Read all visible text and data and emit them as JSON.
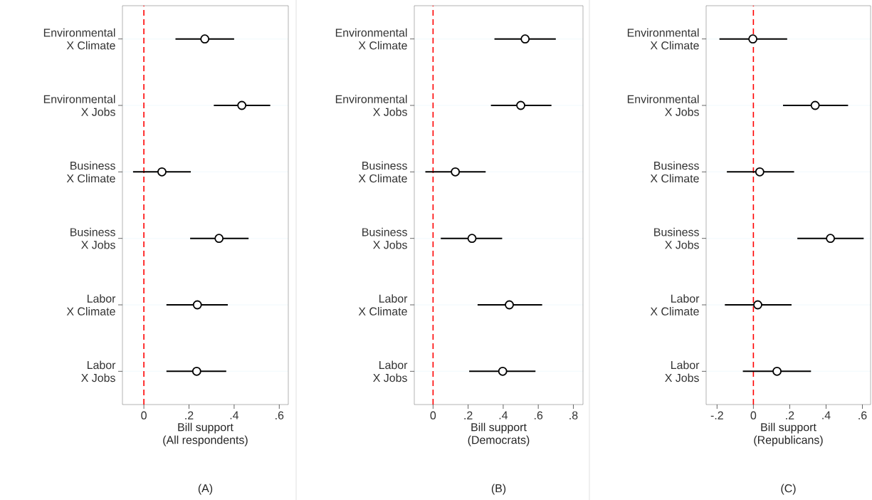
{
  "chart_data": [
    {
      "type": "scatter",
      "orientation": "horizontal",
      "title": "(A)",
      "xlabel": "Bill support\n(All respondents)",
      "categories": [
        "Environmental\nX Climate",
        "Environmental\nX Jobs",
        "Business\nX Climate",
        "Business\nX Jobs",
        "Labor\nX Climate",
        "Labor\nX Jobs"
      ],
      "values": [
        0.27,
        0.434,
        0.08,
        0.333,
        0.237,
        0.234
      ],
      "errors": [
        [
          0.14,
          0.4
        ],
        [
          0.31,
          0.56
        ],
        [
          -0.048,
          0.208
        ],
        [
          0.205,
          0.464
        ],
        [
          0.1,
          0.372
        ],
        [
          0.1,
          0.365
        ]
      ],
      "color": "#000000",
      "marker": "circle",
      "grid": "y",
      "xlim": [
        -0.095,
        0.64
      ],
      "xticks": [
        0,
        {
          "value": 0.2,
          "label": ".2"
        },
        {
          "value": 0.4,
          "label": ".4"
        },
        {
          "value": 0.6,
          "label": ".6"
        }
      ],
      "ref_lines": [
        {
          "axis": "x",
          "value": 0,
          "color": "#ff0000",
          "line_style": "dashed"
        }
      ]
    },
    {
      "type": "scatter",
      "orientation": "horizontal",
      "title": "(B)",
      "xlabel": "Bill support\n(Democrats)",
      "categories": [
        "Environmental\nX Climate",
        "Environmental\nX Jobs",
        "Business\nX Climate",
        "Business\nX Jobs",
        "Labor\nX Climate",
        "Labor\nX Jobs"
      ],
      "values": [
        0.525,
        0.5,
        0.127,
        0.222,
        0.435,
        0.397
      ],
      "errors": [
        [
          0.35,
          0.7
        ],
        [
          0.33,
          0.675
        ],
        [
          -0.044,
          0.3
        ],
        [
          0.044,
          0.394
        ],
        [
          0.254,
          0.622
        ],
        [
          0.206,
          0.584
        ]
      ],
      "color": "#000000",
      "marker": "circle",
      "grid": "y",
      "xlim": [
        -0.107,
        0.855
      ],
      "xticks": [
        0,
        {
          "value": 0.2,
          "label": ".2"
        },
        {
          "value": 0.4,
          "label": ".4"
        },
        {
          "value": 0.6,
          "label": ".6"
        },
        {
          "value": 0.8,
          "label": ".8"
        }
      ],
      "ref_lines": [
        {
          "axis": "x",
          "value": 0,
          "color": "#ff0000",
          "line_style": "dashed"
        }
      ]
    },
    {
      "type": "scatter",
      "orientation": "horizontal",
      "title": "(C)",
      "xlabel": "Bill support\n(Republicans)",
      "categories": [
        "Environmental\nX Climate",
        "Environmental\nX Jobs",
        "Business\nX Climate",
        "Business\nX Jobs",
        "Labor\nX Climate",
        "Labor\nX Jobs"
      ],
      "values": [
        -0.003,
        0.34,
        0.035,
        0.424,
        0.024,
        0.13
      ],
      "errors": [
        [
          -0.187,
          0.186
        ],
        [
          0.163,
          0.521
        ],
        [
          -0.146,
          0.224
        ],
        [
          0.242,
          0.607
        ],
        [
          -0.157,
          0.21
        ],
        [
          -0.058,
          0.317
        ]
      ],
      "color": "#000000",
      "marker": "circle",
      "grid": "y",
      "xlim": [
        -0.26,
        0.645
      ],
      "xticks": [
        {
          "value": -0.2,
          "label": "-.2"
        },
        0,
        {
          "value": 0.2,
          "label": ".2"
        },
        {
          "value": 0.4,
          "label": ".4"
        },
        {
          "value": 0.6,
          "label": ".6"
        }
      ],
      "ref_lines": [
        {
          "axis": "x",
          "value": 0,
          "color": "#ff0000",
          "line_style": "dashed"
        }
      ]
    }
  ]
}
